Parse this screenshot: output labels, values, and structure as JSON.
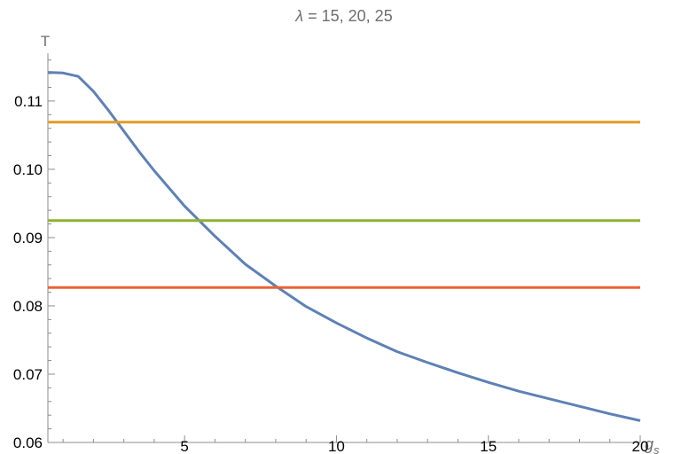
{
  "chart_data": {
    "type": "line",
    "title": "λ = 15, 20, 25",
    "title_parts": {
      "symbol": "λ",
      "rest": " = 15, 20, 25"
    },
    "ylabel": "T",
    "xlabel": {
      "base": "g",
      "sub": "s"
    },
    "xlim": [
      0.5,
      20
    ],
    "ylim": [
      0.06,
      0.117
    ],
    "x_ticks": [
      5,
      10,
      15,
      20
    ],
    "x_tick_labels": [
      "5",
      "10",
      "15",
      "20"
    ],
    "y_ticks": [
      0.06,
      0.07,
      0.08,
      0.09,
      0.1,
      0.11
    ],
    "y_tick_labels": [
      "0.06",
      "0.07",
      "0.08",
      "0.09",
      "0.10",
      "0.11"
    ],
    "grid": false,
    "series": [
      {
        "color": "#5e81b5",
        "x": [
          0.5,
          1.0,
          1.5,
          2.0,
          2.5,
          3.0,
          3.5,
          4.0,
          5.0,
          6.0,
          7.0,
          8.0,
          9.0,
          10.0,
          11.0,
          12.0,
          13.0,
          14.0,
          15.0,
          16.0,
          17.0,
          18.0,
          19.0,
          20.0
        ],
        "y": [
          0.1142,
          0.1141,
          0.1136,
          0.1114,
          0.1086,
          0.1056,
          0.1026,
          0.0998,
          0.0946,
          0.0902,
          0.0861,
          0.0829,
          0.0799,
          0.0775,
          0.0753,
          0.0733,
          0.0717,
          0.0702,
          0.0688,
          0.0675,
          0.0664,
          0.0653,
          0.0642,
          0.0632
        ]
      },
      {
        "color": "#e19c24",
        "x": [
          0.5,
          20
        ],
        "y": [
          0.1069,
          0.1069
        ]
      },
      {
        "color": "#8fb032",
        "x": [
          0.5,
          20
        ],
        "y": [
          0.0925,
          0.0925
        ]
      },
      {
        "color": "#eb6235",
        "x": [
          0.5,
          20
        ],
        "y": [
          0.0827,
          0.0827
        ]
      }
    ]
  }
}
